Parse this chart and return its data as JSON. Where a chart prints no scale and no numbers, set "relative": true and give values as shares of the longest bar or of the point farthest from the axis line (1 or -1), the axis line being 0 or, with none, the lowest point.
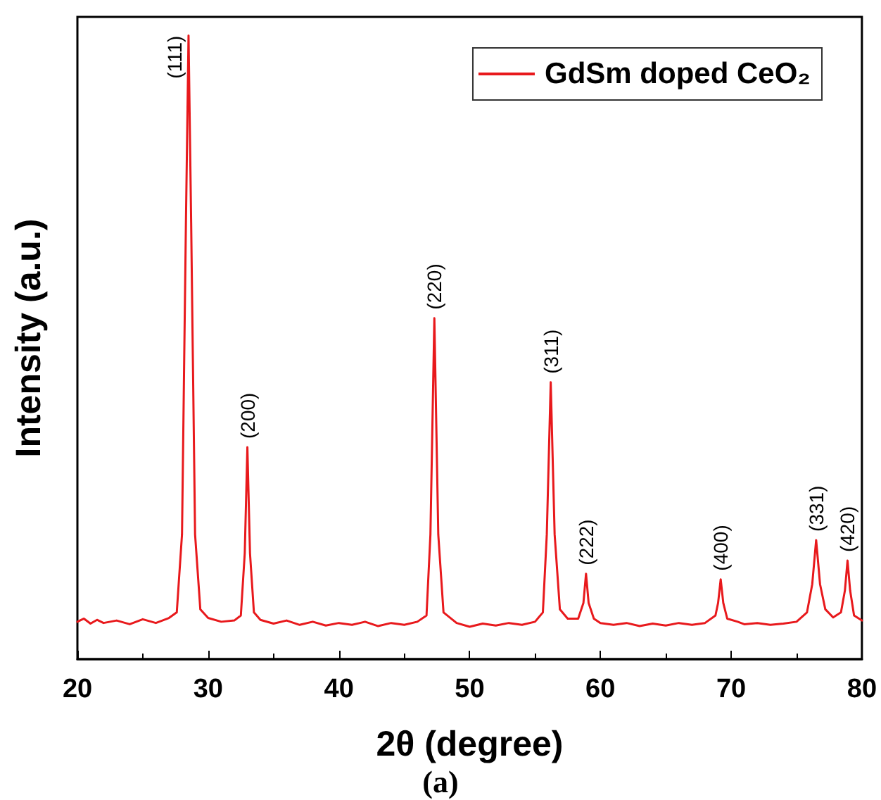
{
  "chart_data": {
    "type": "line",
    "relative": true,
    "xlabel": "2θ (degree)",
    "ylabel": "Intensity (a.u.)",
    "xlim": [
      20,
      80
    ],
    "xticks": [
      20,
      30,
      40,
      50,
      60,
      70,
      80
    ],
    "grid": false,
    "legend": "top right",
    "marker": "none",
    "line_style": "solid",
    "annotations": [
      {
        "text": "(111)",
        "x": 28.5,
        "y": 1.0
      },
      {
        "text": "(200)",
        "x": 33.0,
        "y": 0.34
      },
      {
        "text": "(220)",
        "x": 47.3,
        "y": 0.547
      },
      {
        "text": "(311)",
        "x": 56.2,
        "y": 0.444
      },
      {
        "text": "(222)",
        "x": 58.9,
        "y": 0.137
      },
      {
        "text": "(400)",
        "x": 69.2,
        "y": 0.128
      },
      {
        "text": "(331)",
        "x": 76.5,
        "y": 0.191
      },
      {
        "text": "(420)",
        "x": 78.9,
        "y": 0.158
      },
      "(a)"
    ],
    "series": [
      {
        "name": "GdSm doped CeO₂",
        "color": "#e8191c",
        "x": [
          20,
          20.5,
          21,
          21.5,
          22,
          23,
          24,
          25,
          26,
          27,
          27.6,
          28.0,
          28.3,
          28.5,
          28.7,
          29.0,
          29.4,
          30,
          31,
          32,
          32.5,
          32.8,
          33.0,
          33.2,
          33.5,
          34,
          35,
          36,
          37,
          38,
          39,
          40,
          41,
          42,
          43,
          44,
          45,
          46,
          46.7,
          47.0,
          47.3,
          47.6,
          48,
          49,
          50,
          51,
          52,
          53,
          54,
          55,
          55.6,
          55.9,
          56.2,
          56.5,
          56.9,
          57.5,
          58.3,
          58.7,
          58.9,
          59.1,
          59.5,
          60,
          61,
          62,
          63,
          64,
          65,
          66,
          67,
          68,
          68.8,
          69.0,
          69.2,
          69.4,
          69.7,
          70.5,
          71,
          72,
          73,
          74,
          75,
          75.8,
          76.2,
          76.5,
          76.8,
          77.2,
          77.8,
          78.4,
          78.7,
          78.9,
          79.1,
          79.4,
          80
        ],
        "values": [
          0.06,
          0.065,
          0.057,
          0.063,
          0.058,
          0.062,
          0.056,
          0.064,
          0.058,
          0.066,
          0.075,
          0.2,
          0.7,
          1.0,
          0.7,
          0.2,
          0.08,
          0.066,
          0.06,
          0.062,
          0.07,
          0.17,
          0.34,
          0.17,
          0.075,
          0.063,
          0.057,
          0.062,
          0.055,
          0.06,
          0.054,
          0.058,
          0.055,
          0.06,
          0.053,
          0.058,
          0.055,
          0.06,
          0.07,
          0.2,
          0.547,
          0.2,
          0.075,
          0.058,
          0.052,
          0.057,
          0.054,
          0.058,
          0.055,
          0.06,
          0.075,
          0.2,
          0.444,
          0.2,
          0.08,
          0.065,
          0.065,
          0.09,
          0.137,
          0.09,
          0.065,
          0.058,
          0.055,
          0.058,
          0.053,
          0.057,
          0.054,
          0.058,
          0.055,
          0.058,
          0.07,
          0.09,
          0.128,
          0.09,
          0.065,
          0.06,
          0.056,
          0.058,
          0.055,
          0.057,
          0.06,
          0.075,
          0.12,
          0.191,
          0.12,
          0.08,
          0.067,
          0.075,
          0.11,
          0.158,
          0.11,
          0.07,
          0.062
        ]
      }
    ]
  }
}
